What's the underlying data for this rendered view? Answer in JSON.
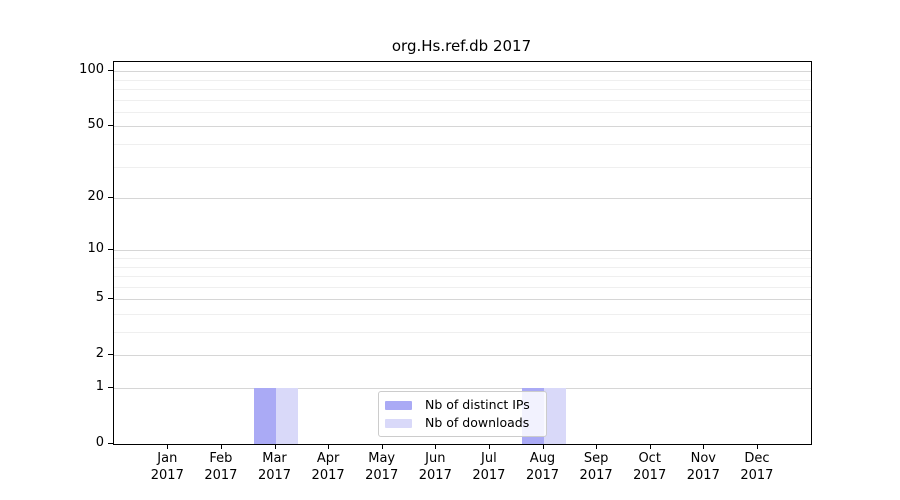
{
  "chart_data": {
    "type": "bar",
    "title": "org.Hs.ref.db 2017",
    "categories": [
      "Jan 2017",
      "Feb 2017",
      "Mar 2017",
      "Apr 2017",
      "May 2017",
      "Jun 2017",
      "Jul 2017",
      "Aug 2017",
      "Sep 2017",
      "Oct 2017",
      "Nov 2017",
      "Dec 2017"
    ],
    "series": [
      {
        "name": "Nb of distinct IPs",
        "color": "#aaaaf5",
        "values": [
          0,
          0,
          1,
          0,
          0,
          0,
          0,
          1,
          0,
          0,
          0,
          0
        ]
      },
      {
        "name": "Nb of downloads",
        "color": "#d9d9f9",
        "values": [
          0,
          0,
          1,
          0,
          0,
          0,
          0,
          1,
          0,
          0,
          0,
          0
        ]
      }
    ],
    "y_axis": {
      "scale": "log1p",
      "major_ticks": [
        100,
        50,
        20,
        10,
        5,
        2,
        1,
        0
      ],
      "minor_gridlines": [
        3,
        4,
        6,
        7,
        8,
        9,
        30,
        40,
        60,
        70,
        80,
        90
      ],
      "range": [
        0,
        113
      ]
    },
    "x_axis": {
      "tick_count": 12
    },
    "grid": "horizontal-only",
    "legend_position": "inside-bottom-center"
  }
}
